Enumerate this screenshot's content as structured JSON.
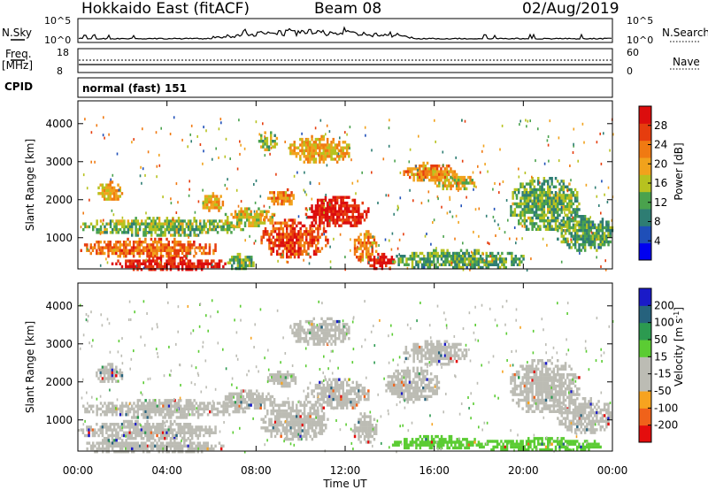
{
  "header": {
    "title": "Hokkaido East (fitACF)",
    "beam": "Beam 08",
    "date": "02/Aug/2019"
  },
  "side_labels": {
    "nsky": "N.Sky",
    "freq": "Freq.",
    "freq_unit": "[MHz]",
    "cpid": "CPID",
    "nsearch": "N.Search",
    "nave": "Nave",
    "nsky_ticks": [
      "10^5",
      "10^0"
    ],
    "nsearch_ticks": [
      "10^5",
      "10^0"
    ],
    "freq_ticks": [
      "18",
      "8"
    ],
    "nave_ticks": [
      "60",
      "0"
    ]
  },
  "cpid_text": "normal (fast) 151",
  "chart_data": [
    {
      "type": "heatmap",
      "name": "power",
      "ylabel": "Slant Range [km]",
      "xlabel": "Time UT",
      "x_ticks": [
        "00:00",
        "04:00",
        "08:00",
        "12:00",
        "16:00",
        "20:00",
        "00:00"
      ],
      "y_ticks": [
        "1000",
        "2000",
        "3000",
        "4000"
      ],
      "ylim": [
        180,
        4600
      ],
      "xlim_hours": [
        0,
        24
      ],
      "colorbar_label": "Power [dB]",
      "colorbar_ticks": [
        "4",
        "8",
        "12",
        "16",
        "20",
        "24",
        "28"
      ],
      "colorbar_range": [
        0,
        32
      ],
      "colorbar_colors": [
        "#0000f0",
        "#1f4fb8",
        "#2e7d73",
        "#4aa24d",
        "#b7c21f",
        "#f1a21c",
        "#f07a12",
        "#e63d0e",
        "#dc0d0d"
      ],
      "regions": [
        {
          "t": [
            0.1,
            6.2
          ],
          "r": [
            500,
            1000
          ],
          "level": 24
        },
        {
          "t": [
            1.5,
            6.6
          ],
          "r": [
            180,
            500
          ],
          "level": 30
        },
        {
          "t": [
            0.2,
            7.5
          ],
          "r": [
            1100,
            1550
          ],
          "level": 14
        },
        {
          "t": [
            6.5,
            8.8
          ],
          "r": [
            1300,
            1800
          ],
          "level": 18
        },
        {
          "t": [
            8.2,
            11.2
          ],
          "r": [
            500,
            1500
          ],
          "level": 26
        },
        {
          "t": [
            10.2,
            13.0
          ],
          "r": [
            1300,
            2100
          ],
          "level": 30
        },
        {
          "t": [
            8.5,
            9.8
          ],
          "r": [
            1900,
            2300
          ],
          "level": 22
        },
        {
          "t": [
            12.3,
            13.4
          ],
          "r": [
            400,
            1200
          ],
          "level": 22
        },
        {
          "t": [
            13.0,
            14.2
          ],
          "r": [
            200,
            600
          ],
          "level": 30
        },
        {
          "t": [
            9.5,
            12.2
          ],
          "r": [
            3000,
            3700
          ],
          "level": 20
        },
        {
          "t": [
            8.1,
            8.9
          ],
          "r": [
            3300,
            3800
          ],
          "level": 14
        },
        {
          "t": [
            14.6,
            17.0
          ],
          "r": [
            2500,
            3000
          ],
          "level": 22
        },
        {
          "t": [
            16.0,
            17.8
          ],
          "r": [
            2300,
            2700
          ],
          "level": 18
        },
        {
          "t": [
            14.1,
            20.0
          ],
          "r": [
            200,
            700
          ],
          "level": 12
        },
        {
          "t": [
            19.4,
            22.5
          ],
          "r": [
            1200,
            2600
          ],
          "level": 13
        },
        {
          "t": [
            21.5,
            24.0
          ],
          "r": [
            700,
            1600
          ],
          "level": 12
        },
        {
          "t": [
            0.8,
            2.0
          ],
          "r": [
            2000,
            2500
          ],
          "level": 20
        },
        {
          "t": [
            5.5,
            6.5
          ],
          "r": [
            1700,
            2200
          ],
          "level": 19
        },
        {
          "t": [
            6.7,
            8.0
          ],
          "r": [
            180,
            600
          ],
          "level": 14
        }
      ]
    },
    {
      "type": "heatmap",
      "name": "velocity",
      "ylabel": "Slant Range [km]",
      "xlabel": "Time UT",
      "x_ticks": [
        "00:00",
        "04:00",
        "08:00",
        "12:00",
        "16:00",
        "20:00",
        "00:00"
      ],
      "y_ticks": [
        "1000",
        "2000",
        "3000",
        "4000"
      ],
      "ylim": [
        180,
        4600
      ],
      "xlim_hours": [
        0,
        24
      ],
      "colorbar_label": "Velocity [m s^-1]",
      "colorbar_ticks": [
        "200",
        "100",
        "50",
        "15",
        "-15",
        "-50",
        "-100",
        "-200"
      ],
      "colorbar_range": [
        -250,
        250
      ],
      "colorbar_colors": [
        "#e40d0d",
        "#f0621a",
        "#f7a31f",
        "#bcbcb4",
        "#bcbcb4",
        "#5bcc33",
        "#2c9a50",
        "#26627d",
        "#1a1ac8"
      ],
      "regions": [
        {
          "t": [
            0.1,
            6.2
          ],
          "r": [
            500,
            1000
          ],
          "level": 0
        },
        {
          "t": [
            1.5,
            6.6
          ],
          "r": [
            180,
            500
          ],
          "level": 0
        },
        {
          "t": [
            0.2,
            7.5
          ],
          "r": [
            1100,
            1550
          ],
          "level": 0
        },
        {
          "t": [
            6.5,
            8.8
          ],
          "r": [
            1300,
            1800
          ],
          "level": 0
        },
        {
          "t": [
            8.2,
            11.2
          ],
          "r": [
            500,
            1500
          ],
          "level": 0
        },
        {
          "t": [
            10.2,
            13.0
          ],
          "r": [
            1300,
            2100
          ],
          "level": 0
        },
        {
          "t": [
            8.5,
            9.8
          ],
          "r": [
            1900,
            2300
          ],
          "level": 0
        },
        {
          "t": [
            12.3,
            13.4
          ],
          "r": [
            400,
            1200
          ],
          "level": 0
        },
        {
          "t": [
            9.5,
            12.2
          ],
          "r": [
            3000,
            3700
          ],
          "level": 0
        },
        {
          "t": [
            14.6,
            17.5
          ],
          "r": [
            2500,
            3100
          ],
          "level": 0
        },
        {
          "t": [
            13.8,
            16.2
          ],
          "r": [
            1500,
            2400
          ],
          "level": 0
        },
        {
          "t": [
            14.1,
            18.0
          ],
          "r": [
            250,
            600
          ],
          "level": 60
        },
        {
          "t": [
            18.0,
            23.5
          ],
          "r": [
            200,
            550
          ],
          "level": 45
        },
        {
          "t": [
            19.4,
            22.5
          ],
          "r": [
            1200,
            2600
          ],
          "level": 0
        },
        {
          "t": [
            21.5,
            24.0
          ],
          "r": [
            700,
            1600
          ],
          "level": 0
        },
        {
          "t": [
            0.8,
            2.0
          ],
          "r": [
            2000,
            2500
          ],
          "level": 0
        },
        {
          "t": [
            0.2,
            3.0
          ],
          "r": [
            180,
            500
          ],
          "level": -60
        }
      ]
    }
  ]
}
